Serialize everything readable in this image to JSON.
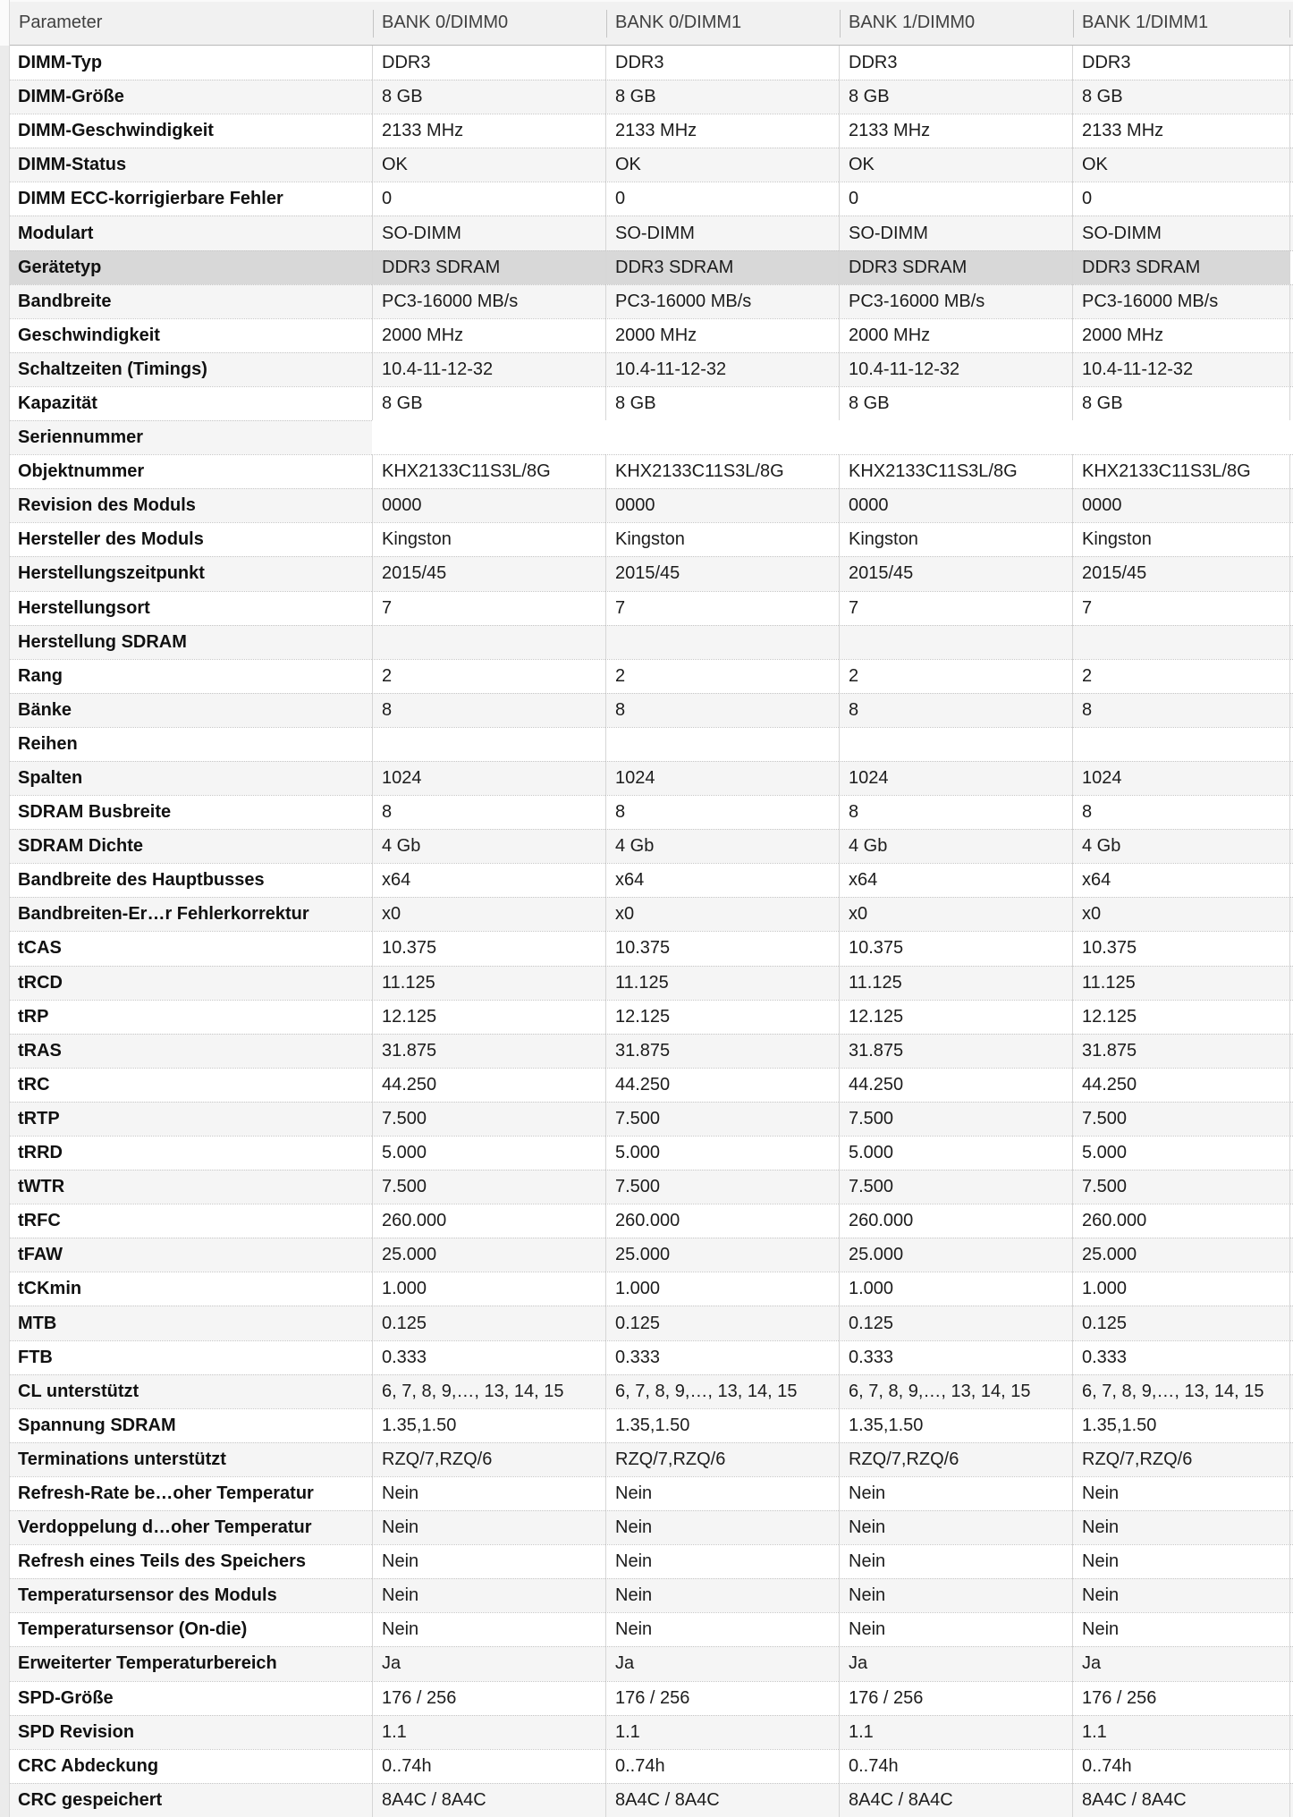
{
  "colors": {
    "header_bg": "#f1f1f1",
    "alt_row": "#f5f5f5",
    "selected_row": "#d8d8d8",
    "rail": "#ebebeb",
    "dotted_border": "#c6c6c6",
    "column_divider": "#d6d6d6",
    "header_border": "#b9b9b9",
    "text": "#1c1c1c"
  },
  "header": {
    "columns": [
      "Parameter",
      "BANK 0/DIMM0",
      "BANK 0/DIMM1",
      "BANK 1/DIMM0",
      "BANK 1/DIMM1"
    ]
  },
  "rows": [
    {
      "param": "DIMM-Typ",
      "values": [
        "DDR3",
        "DDR3",
        "DDR3",
        "DDR3"
      ]
    },
    {
      "param": "DIMM-Größe",
      "values": [
        "8 GB",
        "8 GB",
        "8 GB",
        "8 GB"
      ]
    },
    {
      "param": "DIMM-Geschwindigkeit",
      "values": [
        "2133 MHz",
        "2133 MHz",
        "2133 MHz",
        "2133 MHz"
      ]
    },
    {
      "param": "DIMM-Status",
      "values": [
        "OK",
        "OK",
        "OK",
        "OK"
      ]
    },
    {
      "param": "DIMM ECC-korrigierbare Fehler",
      "values": [
        "0",
        "0",
        "0",
        "0"
      ]
    },
    {
      "param": "Modulart",
      "values": [
        "SO-DIMM",
        "SO-DIMM",
        "SO-DIMM",
        "SO-DIMM"
      ]
    },
    {
      "param": "Gerätetyp",
      "values": [
        "DDR3 SDRAM",
        "DDR3 SDRAM",
        "DDR3 SDRAM",
        "DDR3 SDRAM"
      ],
      "selected": true
    },
    {
      "param": "Bandbreite",
      "values": [
        "PC3-16000 MB/s",
        "PC3-16000 MB/s",
        "PC3-16000 MB/s",
        "PC3-16000 MB/s"
      ]
    },
    {
      "param": "Geschwindigkeit",
      "values": [
        "2000 MHz",
        "2000 MHz",
        "2000 MHz",
        "2000 MHz"
      ]
    },
    {
      "param": "Schaltzeiten (Timings)",
      "values": [
        "10.4-11-12-32",
        "10.4-11-12-32",
        "10.4-11-12-32",
        "10.4-11-12-32"
      ]
    },
    {
      "param": "Kapazität",
      "values": [
        "8 GB",
        "8 GB",
        "8 GB",
        "8 GB"
      ]
    },
    {
      "param": "Seriennummer",
      "values": [
        "",
        "",
        "",
        ""
      ],
      "redacted": true
    },
    {
      "param": "Objektnummer",
      "values": [
        "KHX2133C11S3L/8G",
        "KHX2133C11S3L/8G",
        "KHX2133C11S3L/8G",
        "KHX2133C11S3L/8G"
      ]
    },
    {
      "param": "Revision des Moduls",
      "values": [
        "0000",
        "0000",
        "0000",
        "0000"
      ]
    },
    {
      "param": "Hersteller des Moduls",
      "values": [
        "Kingston",
        "Kingston",
        "Kingston",
        "Kingston"
      ]
    },
    {
      "param": "Herstellungszeitpunkt",
      "values": [
        "2015/45",
        "2015/45",
        "2015/45",
        "2015/45"
      ]
    },
    {
      "param": "Herstellungsort",
      "values": [
        "7",
        "7",
        "7",
        "7"
      ]
    },
    {
      "param": "Herstellung SDRAM",
      "values": [
        "",
        "",
        "",
        ""
      ]
    },
    {
      "param": "Rang",
      "values": [
        "2",
        "2",
        "2",
        "2"
      ]
    },
    {
      "param": "Bänke",
      "values": [
        "8",
        "8",
        "8",
        "8"
      ]
    },
    {
      "param": "Reihen",
      "values": [
        "",
        "",
        "",
        ""
      ]
    },
    {
      "param": "Spalten",
      "values": [
        "1024",
        "1024",
        "1024",
        "1024"
      ]
    },
    {
      "param": "SDRAM Busbreite",
      "values": [
        "8",
        "8",
        "8",
        "8"
      ]
    },
    {
      "param": "SDRAM Dichte",
      "values": [
        "4 Gb",
        "4 Gb",
        "4 Gb",
        "4 Gb"
      ]
    },
    {
      "param": "Bandbreite des Hauptbusses",
      "values": [
        "x64",
        "x64",
        "x64",
        "x64"
      ]
    },
    {
      "param": "Bandbreiten-Er…r Fehlerkorrektur",
      "values": [
        "x0",
        "x0",
        "x0",
        "x0"
      ]
    },
    {
      "param": "tCAS",
      "values": [
        "10.375",
        "10.375",
        "10.375",
        "10.375"
      ]
    },
    {
      "param": "tRCD",
      "values": [
        "11.125",
        "11.125",
        "11.125",
        "11.125"
      ]
    },
    {
      "param": "tRP",
      "values": [
        "12.125",
        "12.125",
        "12.125",
        "12.125"
      ]
    },
    {
      "param": "tRAS",
      "values": [
        "31.875",
        "31.875",
        "31.875",
        "31.875"
      ]
    },
    {
      "param": "tRC",
      "values": [
        "44.250",
        "44.250",
        "44.250",
        "44.250"
      ]
    },
    {
      "param": "tRTP",
      "values": [
        "7.500",
        "7.500",
        "7.500",
        "7.500"
      ]
    },
    {
      "param": "tRRD",
      "values": [
        "5.000",
        "5.000",
        "5.000",
        "5.000"
      ]
    },
    {
      "param": "tWTR",
      "values": [
        "7.500",
        "7.500",
        "7.500",
        "7.500"
      ]
    },
    {
      "param": "tRFC",
      "values": [
        "260.000",
        "260.000",
        "260.000",
        "260.000"
      ]
    },
    {
      "param": "tFAW",
      "values": [
        "25.000",
        "25.000",
        "25.000",
        "25.000"
      ]
    },
    {
      "param": "tCKmin",
      "values": [
        "1.000",
        "1.000",
        "1.000",
        "1.000"
      ]
    },
    {
      "param": "MTB",
      "values": [
        "0.125",
        "0.125",
        "0.125",
        "0.125"
      ]
    },
    {
      "param": "FTB",
      "values": [
        "0.333",
        "0.333",
        "0.333",
        "0.333"
      ]
    },
    {
      "param": "CL unterstützt",
      "values": [
        "6, 7, 8, 9,…, 13, 14, 15",
        "6, 7, 8, 9,…, 13, 14, 15",
        "6, 7, 8, 9,…, 13, 14, 15",
        "6, 7, 8, 9,…, 13, 14, 15"
      ]
    },
    {
      "param": "Spannung SDRAM",
      "values": [
        "1.35,1.50",
        "1.35,1.50",
        "1.35,1.50",
        "1.35,1.50"
      ]
    },
    {
      "param": "Terminations unterstützt",
      "values": [
        "RZQ/7,RZQ/6",
        "RZQ/7,RZQ/6",
        "RZQ/7,RZQ/6",
        "RZQ/7,RZQ/6"
      ]
    },
    {
      "param": "Refresh-Rate be…oher Temperatur",
      "values": [
        "Nein",
        "Nein",
        "Nein",
        "Nein"
      ]
    },
    {
      "param": "Verdoppelung d…oher Temperatur",
      "values": [
        "Nein",
        "Nein",
        "Nein",
        "Nein"
      ]
    },
    {
      "param": "Refresh eines Teils des Speichers",
      "values": [
        "Nein",
        "Nein",
        "Nein",
        "Nein"
      ]
    },
    {
      "param": "Temperatursensor des Moduls",
      "values": [
        "Nein",
        "Nein",
        "Nein",
        "Nein"
      ]
    },
    {
      "param": "Temperatursensor (On-die)",
      "values": [
        "Nein",
        "Nein",
        "Nein",
        "Nein"
      ]
    },
    {
      "param": "Erweiterter Temperaturbereich",
      "values": [
        "Ja",
        "Ja",
        "Ja",
        "Ja"
      ]
    },
    {
      "param": "SPD-Größe",
      "values": [
        "176 / 256",
        "176 / 256",
        "176 / 256",
        "176 / 256"
      ]
    },
    {
      "param": "SPD Revision",
      "values": [
        "1.1",
        "1.1",
        "1.1",
        "1.1"
      ]
    },
    {
      "param": "CRC Abdeckung",
      "values": [
        "0..74h",
        "0..74h",
        "0..74h",
        "0..74h"
      ]
    },
    {
      "param": "CRC gespeichert",
      "values": [
        "8A4C / 8A4C",
        "8A4C / 8A4C",
        "8A4C / 8A4C",
        "8A4C / 8A4C"
      ]
    }
  ]
}
